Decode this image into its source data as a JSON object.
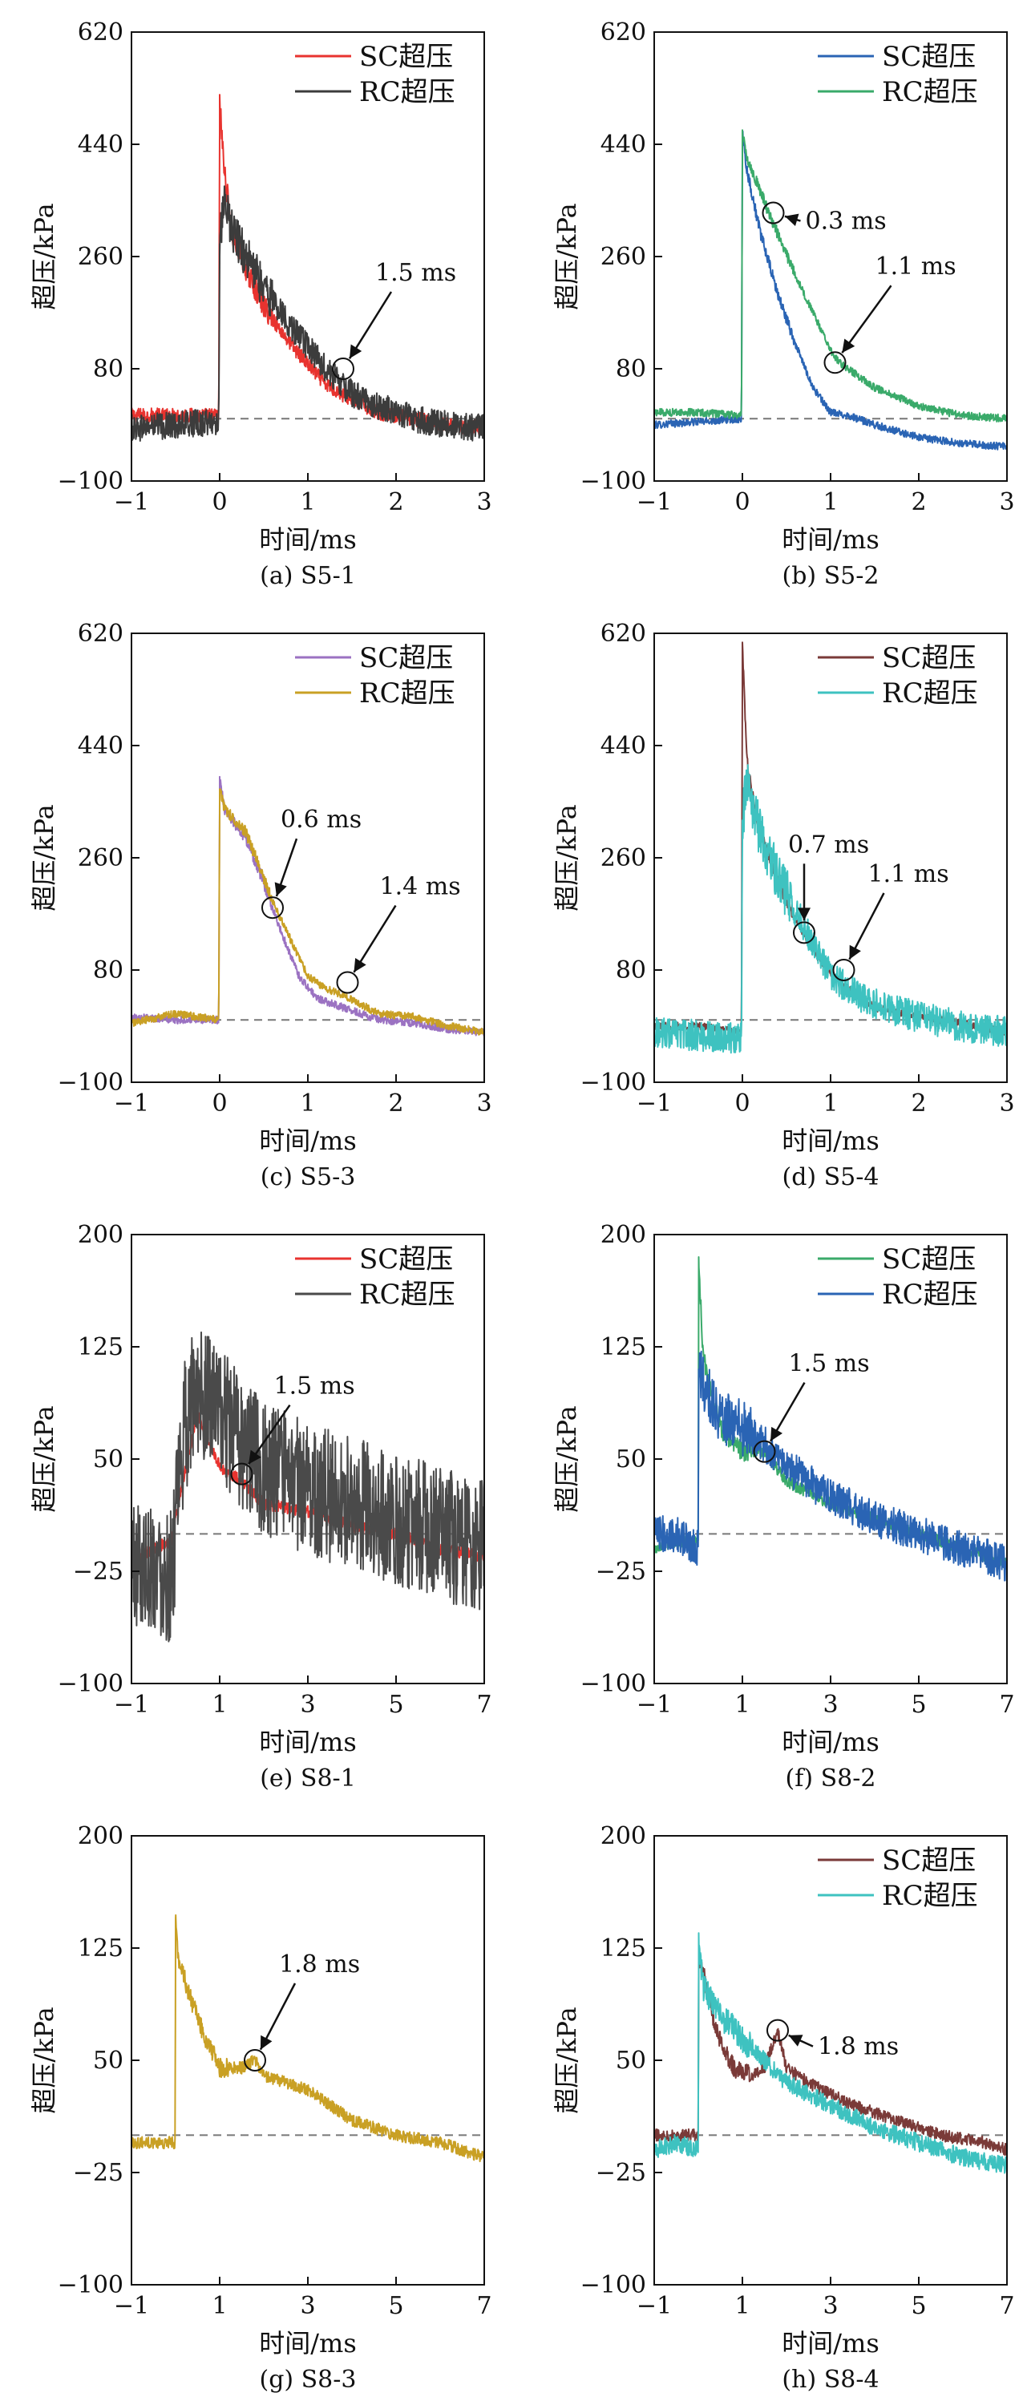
{
  "chart_data": [
    {
      "type": "line",
      "caption": "(a) S5-1",
      "xlabel": "时间/ms",
      "ylabel": "超压/kPa",
      "xlim": [
        -1,
        3
      ],
      "ylim": [
        -100,
        620
      ],
      "xticks": [
        -1,
        0,
        1,
        2,
        3
      ],
      "yticks": [
        -100,
        80,
        260,
        440,
        620
      ],
      "baseline": 0,
      "legend_position": "top-right",
      "series": [
        {
          "name": "SC超压",
          "color": "#e8332f",
          "noise": 12,
          "x": [
            -1,
            -0.5,
            -0.01,
            0,
            0.05,
            0.15,
            0.3,
            0.5,
            0.8,
            1.2,
            1.5,
            1.8,
            2.2,
            2.6,
            3
          ],
          "y": [
            5,
            5,
            5,
            510,
            400,
            290,
            240,
            180,
            120,
            55,
            30,
            10,
            0,
            -10,
            -15
          ]
        },
        {
          "name": "RC超压",
          "color": "#3c3c3c",
          "noise": 22,
          "x": [
            -1,
            -0.5,
            -0.01,
            0,
            0.05,
            0.15,
            0.3,
            0.5,
            0.8,
            1.2,
            1.5,
            1.8,
            2.2,
            2.6,
            3
          ],
          "y": [
            -15,
            -10,
            -5,
            280,
            340,
            300,
            260,
            210,
            150,
            80,
            40,
            20,
            0,
            -10,
            -15
          ]
        }
      ],
      "annotations": [
        {
          "text": "1.5 ms",
          "x": 1.4,
          "y": 80
        }
      ]
    },
    {
      "type": "line",
      "caption": "(b) S5-2",
      "xlabel": "时间/ms",
      "ylabel": "超压/kPa",
      "xlim": [
        -1,
        3
      ],
      "ylim": [
        -100,
        620
      ],
      "xticks": [
        -1,
        0,
        1,
        2,
        3
      ],
      "yticks": [
        -100,
        80,
        260,
        440,
        620
      ],
      "baseline": 0,
      "legend_position": "top-right",
      "series": [
        {
          "name": "SC超压",
          "color": "#2a64b4",
          "noise": 6,
          "x": [
            -1,
            -0.5,
            -0.01,
            0,
            0.05,
            0.2,
            0.4,
            0.6,
            0.8,
            1.0,
            1.2,
            1.5,
            2.0,
            2.5,
            3
          ],
          "y": [
            -10,
            -5,
            0,
            460,
            400,
            300,
            200,
            120,
            50,
            10,
            5,
            -10,
            -30,
            -40,
            -45
          ]
        },
        {
          "name": "RC超压",
          "color": "#3aaa6a",
          "noise": 6,
          "x": [
            -1,
            -0.5,
            -0.01,
            0,
            0.05,
            0.3,
            0.6,
            1.0,
            1.1,
            1.5,
            2.0,
            2.5,
            3
          ],
          "y": [
            10,
            10,
            5,
            460,
            420,
            330,
            230,
            110,
            90,
            50,
            20,
            5,
            0
          ]
        }
      ],
      "annotations": [
        {
          "text": "0.3 ms",
          "x": 0.35,
          "y": 330
        },
        {
          "text": "1.1 ms",
          "x": 1.05,
          "y": 90
        }
      ]
    },
    {
      "type": "line",
      "caption": "(c) S5-3",
      "xlabel": "时间/ms",
      "ylabel": "超压/kPa",
      "xlim": [
        -1,
        3
      ],
      "ylim": [
        -100,
        620
      ],
      "xticks": [
        -1,
        0,
        1,
        2,
        3
      ],
      "yticks": [
        -100,
        80,
        260,
        440,
        620
      ],
      "baseline": 0,
      "legend_position": "top-right",
      "series": [
        {
          "name": "SC超压",
          "color": "#9b72c2",
          "noise": 6,
          "x": [
            -1,
            -0.5,
            -0.01,
            0,
            0.05,
            0.3,
            0.5,
            0.7,
            0.9,
            1.1,
            1.4,
            1.8,
            2.2,
            2.6,
            3
          ],
          "y": [
            5,
            0,
            0,
            390,
            340,
            290,
            220,
            140,
            70,
            35,
            20,
            0,
            -5,
            -15,
            -20
          ]
        },
        {
          "name": "RC超压",
          "color": "#c9a024",
          "noise": 6,
          "x": [
            -1,
            -0.5,
            -0.01,
            0,
            0.05,
            0.3,
            0.6,
            0.8,
            1.0,
            1.2,
            1.4,
            1.8,
            2.2,
            2.6,
            3
          ],
          "y": [
            -5,
            10,
            0,
            370,
            340,
            300,
            190,
            130,
            70,
            50,
            40,
            10,
            5,
            -10,
            -20
          ]
        }
      ],
      "annotations": [
        {
          "text": "0.6 ms",
          "x": 0.6,
          "y": 180
        },
        {
          "text": "1.4 ms",
          "x": 1.45,
          "y": 60
        }
      ]
    },
    {
      "type": "line",
      "caption": "(d) S5-4",
      "xlabel": "时间/ms",
      "ylabel": "超压/kPa",
      "xlim": [
        -1,
        3
      ],
      "ylim": [
        -100,
        620
      ],
      "xticks": [
        -1,
        0,
        1,
        2,
        3
      ],
      "yticks": [
        -100,
        80,
        260,
        440,
        620
      ],
      "baseline": 0,
      "legend_position": "top-right",
      "series": [
        {
          "name": "SC超压",
          "color": "#7a3a38",
          "noise": 6,
          "x": [
            -1,
            -0.5,
            -0.01,
            0,
            0.05,
            0.15,
            0.3,
            0.5,
            0.8,
            1.1,
            1.5,
            2.0,
            2.5,
            3
          ],
          "y": [
            -10,
            -10,
            -20,
            600,
            420,
            330,
            260,
            190,
            110,
            60,
            20,
            5,
            -5,
            -20
          ]
        },
        {
          "name": "RC超压",
          "color": "#3ec2c0",
          "noise": 25,
          "x": [
            -1,
            -0.5,
            -0.01,
            0,
            0.05,
            0.2,
            0.4,
            0.7,
            1.0,
            1.3,
            1.6,
            2.0,
            2.5,
            3
          ],
          "y": [
            -20,
            -25,
            -30,
            320,
            380,
            300,
            230,
            150,
            70,
            40,
            20,
            5,
            -10,
            -20
          ]
        }
      ],
      "annotations": [
        {
          "text": "0.7 ms",
          "x": 0.7,
          "y": 140
        },
        {
          "text": "1.1 ms",
          "x": 1.15,
          "y": 80
        }
      ]
    },
    {
      "type": "line",
      "caption": "(e) S8-1",
      "xlabel": "时间/ms",
      "ylabel": "超压/kPa",
      "xlim": [
        -1,
        7
      ],
      "ylim": [
        -100,
        200
      ],
      "xticks": [
        -1,
        1,
        3,
        5,
        7
      ],
      "yticks": [
        -100,
        -25,
        50,
        125,
        200
      ],
      "baseline": 0,
      "legend_position": "top-right",
      "series": [
        {
          "name": "SC超压",
          "color": "#e8332f",
          "noise": 4,
          "x": [
            -1,
            -0.5,
            -0.1,
            0.2,
            0.5,
            1.0,
            1.5,
            2.0,
            3.0,
            4.0,
            5.0,
            6.0,
            7.0
          ],
          "y": [
            -20,
            -10,
            -5,
            40,
            80,
            45,
            35,
            20,
            15,
            5,
            0,
            -10,
            -15
          ]
        },
        {
          "name": "RC超压",
          "color": "#4a4a4a",
          "noise": 45,
          "x": [
            -1,
            -0.5,
            -0.1,
            0.2,
            0.5,
            1.0,
            1.5,
            2.0,
            3.0,
            4.0,
            5.0,
            6.0,
            7.0
          ],
          "y": [
            -20,
            -20,
            -30,
            70,
            100,
            80,
            60,
            45,
            30,
            20,
            10,
            0,
            -10
          ]
        }
      ],
      "annotations": [
        {
          "text": "1.5 ms",
          "x": 1.5,
          "y": 40
        }
      ]
    },
    {
      "type": "line",
      "caption": "(f) S8-2",
      "xlabel": "时间/ms",
      "ylabel": "超压/kPa",
      "xlim": [
        -1,
        7
      ],
      "ylim": [
        -100,
        200
      ],
      "xticks": [
        -1,
        1,
        3,
        5,
        7
      ],
      "yticks": [
        -100,
        -25,
        50,
        125,
        200
      ],
      "baseline": 0,
      "legend_position": "top-right",
      "series": [
        {
          "name": "SC超压",
          "color": "#3aaa6a",
          "noise": 4,
          "x": [
            -1,
            -0.5,
            0,
            0.01,
            0.1,
            0.5,
            1.0,
            1.5,
            2.0,
            3.0,
            4.0,
            5.0,
            6.0,
            7.0
          ],
          "y": [
            -10,
            -5,
            -5,
            185,
            120,
            70,
            55,
            55,
            35,
            20,
            10,
            0,
            -10,
            -20
          ]
        },
        {
          "name": "RC超压",
          "color": "#2a64b4",
          "noise": 12,
          "x": [
            -1,
            -0.5,
            0,
            0.01,
            0.1,
            0.5,
            1.0,
            1.5,
            2.0,
            3.0,
            4.0,
            5.0,
            6.0,
            7.0
          ],
          "y": [
            0,
            0,
            -10,
            110,
            100,
            80,
            70,
            60,
            45,
            25,
            10,
            0,
            -10,
            -20
          ]
        }
      ],
      "annotations": [
        {
          "text": "1.5 ms",
          "x": 1.5,
          "y": 55
        }
      ]
    },
    {
      "type": "line",
      "caption": "(g) S8-3",
      "xlabel": "时间/ms",
      "ylabel": "超压/kPa",
      "xlim": [
        -1,
        7
      ],
      "ylim": [
        -100,
        200
      ],
      "xticks": [
        -1,
        1,
        3,
        5,
        7
      ],
      "yticks": [
        -100,
        -25,
        50,
        125,
        200
      ],
      "baseline": 0,
      "legend_position": "none",
      "series": [
        {
          "name": "",
          "color": "#c9a024",
          "noise": 4,
          "x": [
            -1,
            -0.5,
            -0.01,
            0,
            0.05,
            0.3,
            0.6,
            1.0,
            1.5,
            1.8,
            2.0,
            3.0,
            4.0,
            5.0,
            6.0,
            7.0
          ],
          "y": [
            -5,
            -5,
            -5,
            145,
            120,
            95,
            70,
            45,
            45,
            50,
            40,
            30,
            10,
            0,
            -5,
            -15
          ]
        }
      ],
      "annotations": [
        {
          "text": "1.8 ms",
          "x": 1.8,
          "y": 50
        }
      ]
    },
    {
      "type": "line",
      "caption": "(h) S8-4",
      "xlabel": "时间/ms",
      "ylabel": "超压/kPa",
      "xlim": [
        -1,
        7
      ],
      "ylim": [
        -100,
        200
      ],
      "xticks": [
        -1,
        1,
        3,
        5,
        7
      ],
      "yticks": [
        -100,
        -25,
        50,
        125,
        200
      ],
      "baseline": 0,
      "legend_position": "top-right",
      "series": [
        {
          "name": "SC超压",
          "color": "#7a3a38",
          "noise": 4,
          "x": [
            -1,
            -0.5,
            0,
            0.01,
            0.1,
            0.4,
            0.8,
            1.2,
            1.5,
            1.8,
            2.0,
            2.5,
            3.5,
            4.5,
            5.5,
            6.5,
            7.0
          ],
          "y": [
            0,
            0,
            0,
            120,
            110,
            70,
            45,
            40,
            45,
            70,
            45,
            35,
            20,
            10,
            0,
            -5,
            -10
          ]
        },
        {
          "name": "RC超压",
          "color": "#3ec2c0",
          "noise": 6,
          "x": [
            -1,
            -0.5,
            0,
            0.01,
            0.1,
            0.5,
            1.0,
            1.5,
            2.0,
            3.0,
            4.0,
            5.0,
            6.0,
            7.0
          ],
          "y": [
            -10,
            -5,
            -10,
            135,
            100,
            80,
            65,
            50,
            35,
            20,
            5,
            -5,
            -15,
            -20
          ]
        }
      ],
      "annotations": [
        {
          "text": "1.8 ms",
          "x": 1.8,
          "y": 70
        }
      ]
    }
  ]
}
